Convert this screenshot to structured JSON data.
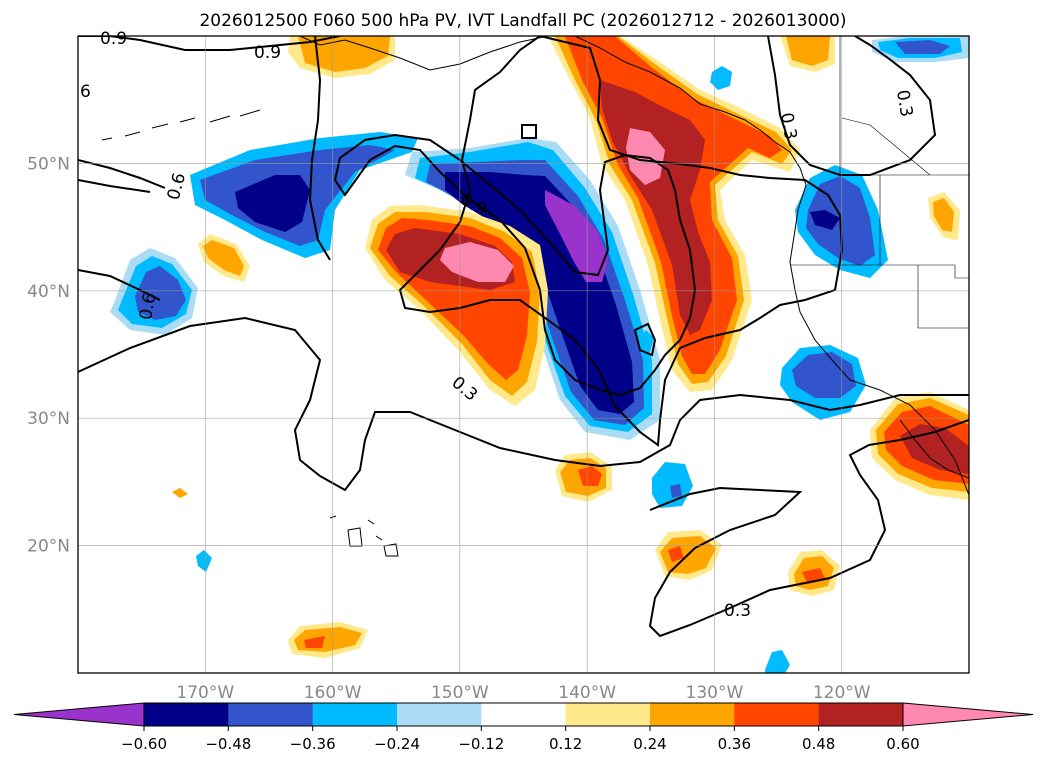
{
  "chart_data": {
    "type": "heatmap",
    "title": "2026012500 F060 500 hPa PV, IVT Landfall PC (2026012712 - 2026013000)",
    "map": {
      "lon_range": [
        -180,
        -110
      ],
      "lat_range": [
        10,
        60
      ],
      "lon_ticks": [
        {
          "value": -170,
          "label": "170°W"
        },
        {
          "value": -160,
          "label": "160°W"
        },
        {
          "value": -150,
          "label": "150°W"
        },
        {
          "value": -140,
          "label": "140°W"
        },
        {
          "value": -130,
          "label": "130°W"
        },
        {
          "value": -120,
          "label": "120°W"
        }
      ],
      "lat_ticks": [
        {
          "value": 20,
          "label": "20°N"
        },
        {
          "value": 30,
          "label": "30°N"
        },
        {
          "value": 40,
          "label": "40°N"
        },
        {
          "value": 50,
          "label": "50°N"
        }
      ],
      "grid": true
    },
    "colorbar": {
      "levels": [
        -0.6,
        -0.48,
        -0.36,
        -0.24,
        -0.12,
        0.12,
        0.24,
        0.36,
        0.48,
        0.6
      ],
      "tick_labels": [
        "−0.60",
        "−0.48",
        "−0.36",
        "−0.24",
        "−0.12",
        "0.12",
        "0.24",
        "0.36",
        "0.48",
        "0.60"
      ],
      "colors": [
        "#9933cc",
        "#000088",
        "#3355cc",
        "#00bbff",
        "#aaddf5",
        "#ffffff",
        "#ffe98a",
        "#ffa500",
        "#ff4500",
        "#b22222",
        "#ff88b0"
      ],
      "extend": "both"
    },
    "contour_labels": [
      "0.9",
      "0.9",
      "6",
      "0.6",
      "0.9",
      "0.6",
      "0.3",
      "0.3",
      "0.3",
      "0.3"
    ],
    "anomaly_regions": [
      {
        "sign": "positive",
        "center": [
          -148,
          42
        ],
        "peak": 0.6
      },
      {
        "sign": "positive",
        "center": [
          -134,
          48
        ],
        "peak": 0.6
      },
      {
        "sign": "negative",
        "center": [
          -140,
          40
        ],
        "peak": -0.6
      },
      {
        "sign": "negative",
        "center": [
          -167,
          48
        ],
        "peak": -0.48
      },
      {
        "sign": "negative",
        "center": [
          -172,
          39
        ],
        "peak": -0.36
      },
      {
        "sign": "negative",
        "center": [
          -120,
          47
        ],
        "peak": -0.36
      },
      {
        "sign": "negative",
        "center": [
          -121,
          34
        ],
        "peak": -0.36
      },
      {
        "sign": "positive",
        "center": [
          -114,
          28
        ],
        "peak": 0.48
      },
      {
        "sign": "positive",
        "center": [
          -142,
          25
        ],
        "peak": 0.36
      },
      {
        "sign": "positive",
        "center": [
          -132,
          19
        ],
        "peak": 0.36
      },
      {
        "sign": "positive",
        "center": [
          -123,
          18
        ],
        "peak": 0.36
      },
      {
        "sign": "positive",
        "center": [
          -160,
          13
        ],
        "peak": 0.36
      },
      {
        "sign": "positive",
        "center": [
          -168,
          43
        ],
        "peak": 0.24
      },
      {
        "sign": "positive",
        "center": [
          -120,
          57
        ],
        "peak": 0.24
      },
      {
        "sign": "positive",
        "center": [
          -113,
          46
        ],
        "peak": 0.24
      }
    ]
  }
}
